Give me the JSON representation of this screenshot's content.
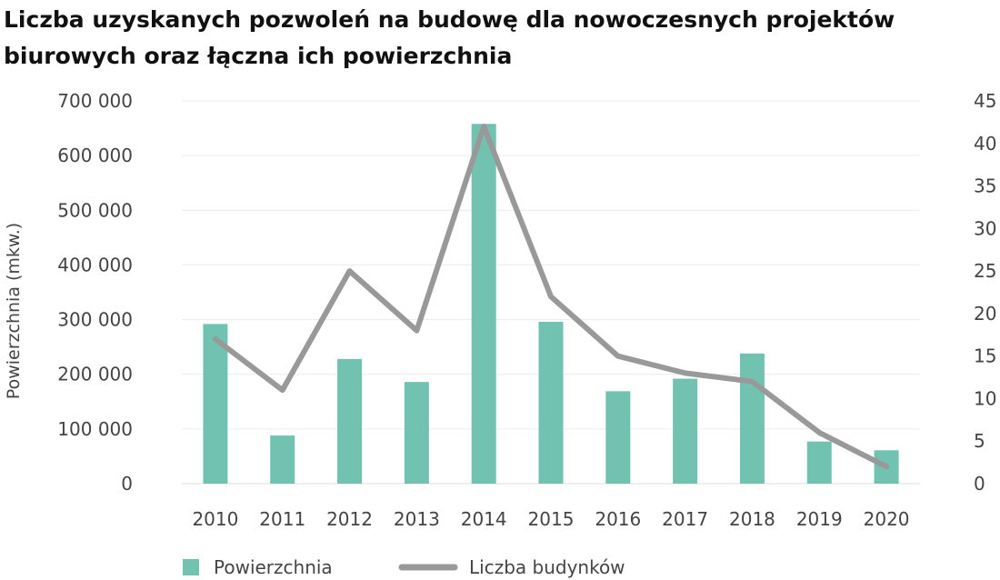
{
  "chart_data": {
    "type": "bar+line",
    "title": "Liczba uzyskanych pozwoleń na budowę dla nowoczesnych projektów biurowych oraz łączna ich powierzchnia",
    "categories": [
      "2010",
      "2011",
      "2012",
      "2013",
      "2014",
      "2015",
      "2016",
      "2017",
      "2018",
      "2019",
      "2020"
    ],
    "series": [
      {
        "name": "Powierzchnia",
        "type": "bar",
        "axis": "left",
        "color": "#72c2b2",
        "values": [
          292000,
          88000,
          228000,
          186000,
          658000,
          296000,
          169000,
          192000,
          238000,
          77000,
          61000
        ]
      },
      {
        "name": "Liczba budynków",
        "type": "line",
        "axis": "right",
        "color": "#999999",
        "values": [
          17,
          11,
          25,
          18,
          42,
          22,
          15,
          13,
          12,
          6,
          2
        ]
      }
    ],
    "ylabel": "Powierzchnia (mkw.)",
    "ylim": [
      0,
      700000
    ],
    "yticks": [
      "0",
      "100 000",
      "200 000",
      "300 000",
      "400 000",
      "500 000",
      "600 000",
      "700 000"
    ],
    "y2lim": [
      0,
      45
    ],
    "y2ticks": [
      "0",
      "5",
      "10",
      "15",
      "20",
      "25",
      "30",
      "35",
      "40",
      "45"
    ],
    "grid": true,
    "legend": "bottom-left"
  }
}
